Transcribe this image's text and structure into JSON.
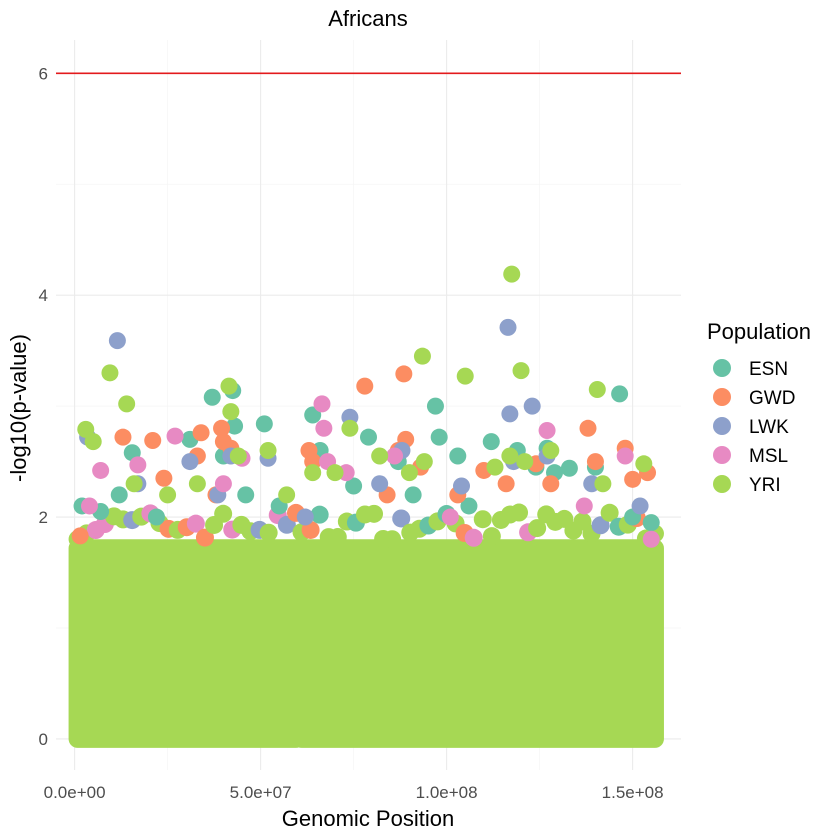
{
  "chart_data": {
    "type": "scatter",
    "title": "Africans",
    "xlabel": "Genomic Position",
    "ylabel": "-log10(p-value)",
    "xlim": [
      -5000000,
      163000000
    ],
    "ylim": [
      -0.28,
      6.3
    ],
    "x_ticks": [
      0,
      50000000,
      100000000,
      150000000
    ],
    "x_tick_labels": [
      "0.0e+00",
      "5.0e+07",
      "1.0e+08",
      "1.5e+08"
    ],
    "y_ticks": [
      0,
      2,
      4,
      6
    ],
    "y_tick_labels": [
      "0",
      "2",
      "4",
      "6"
    ],
    "grid": true,
    "threshold": {
      "y": 6,
      "color": "#e31a1c"
    },
    "legend": {
      "title": "Population",
      "position": "right",
      "entries": [
        {
          "label": "ESN",
          "color": "#66c2a5"
        },
        {
          "label": "GWD",
          "color": "#fc8d62"
        },
        {
          "label": "LWK",
          "color": "#8da0cb"
        },
        {
          "label": "MSL",
          "color": "#e78ac3"
        },
        {
          "label": "YRI",
          "color": "#a6d854"
        }
      ]
    },
    "dense_band": {
      "segments": [
        [
          800000,
          59500000
        ],
        [
          61000000,
          156000000
        ]
      ],
      "y_max_approx": 1.8
    },
    "series": [
      {
        "name": "ESN",
        "color": "#66c2a5",
        "points": [
          [
            2000000,
            2.1
          ],
          [
            7000000,
            2.05
          ],
          [
            12000000,
            2.2
          ],
          [
            15500000,
            2.58
          ],
          [
            22000000,
            2.0
          ],
          [
            31000000,
            2.7
          ],
          [
            37000000,
            3.08
          ],
          [
            40000000,
            2.55
          ],
          [
            42500000,
            3.14
          ],
          [
            43000000,
            2.82
          ],
          [
            46000000,
            2.2
          ],
          [
            51000000,
            2.84
          ],
          [
            55000000,
            2.1
          ],
          [
            64000000,
            2.92
          ],
          [
            66000000,
            2.6
          ],
          [
            75000000,
            2.28
          ],
          [
            79000000,
            2.72
          ],
          [
            87000000,
            2.5
          ],
          [
            91000000,
            2.2
          ],
          [
            97000000,
            3.0
          ],
          [
            98000000,
            2.72
          ],
          [
            103000000,
            2.55
          ],
          [
            106000000,
            2.1
          ],
          [
            112000000,
            2.68
          ],
          [
            119000000,
            2.6
          ],
          [
            124000000,
            2.45
          ],
          [
            127000000,
            2.62
          ],
          [
            129000000,
            2.4
          ],
          [
            133000000,
            2.44
          ],
          [
            140000000,
            2.45
          ],
          [
            146500000,
            3.11
          ],
          [
            150000000,
            2.0
          ],
          [
            155000000,
            1.95
          ]
        ]
      },
      {
        "name": "GWD",
        "color": "#fc8d62",
        "points": [
          [
            1500000,
            1.83
          ],
          [
            13000000,
            2.72
          ],
          [
            21000000,
            2.69
          ],
          [
            24000000,
            2.35
          ],
          [
            33000000,
            2.55
          ],
          [
            34000000,
            2.76
          ],
          [
            38000000,
            2.2
          ],
          [
            39500000,
            2.8
          ],
          [
            40000000,
            2.68
          ],
          [
            42000000,
            2.62
          ],
          [
            63000000,
            2.6
          ],
          [
            64000000,
            2.5
          ],
          [
            78000000,
            3.18
          ],
          [
            84000000,
            2.2
          ],
          [
            87000000,
            2.6
          ],
          [
            88500000,
            3.29
          ],
          [
            89000000,
            2.7
          ],
          [
            93000000,
            2.45
          ],
          [
            103000000,
            2.2
          ],
          [
            110000000,
            2.42
          ],
          [
            116000000,
            2.3
          ],
          [
            124000000,
            2.48
          ],
          [
            128000000,
            2.3
          ],
          [
            138000000,
            2.8
          ],
          [
            140000000,
            2.5
          ],
          [
            148000000,
            2.62
          ],
          [
            150000000,
            2.34
          ],
          [
            154000000,
            2.4
          ]
        ]
      },
      {
        "name": "LWK",
        "color": "#8da0cb",
        "points": [
          [
            3500000,
            2.72
          ],
          [
            11500000,
            3.59
          ],
          [
            17000000,
            2.3
          ],
          [
            31000000,
            2.5
          ],
          [
            38500000,
            2.2
          ],
          [
            42000000,
            2.55
          ],
          [
            52000000,
            2.53
          ],
          [
            62000000,
            2.0
          ],
          [
            74000000,
            2.9
          ],
          [
            82000000,
            2.3
          ],
          [
            88000000,
            2.6
          ],
          [
            104000000,
            2.28
          ],
          [
            116500000,
            3.71
          ],
          [
            117000000,
            2.93
          ],
          [
            118000000,
            2.5
          ],
          [
            123000000,
            3.0
          ],
          [
            127000000,
            2.55
          ],
          [
            139000000,
            2.3
          ],
          [
            152000000,
            2.1
          ]
        ]
      },
      {
        "name": "MSL",
        "color": "#e78ac3",
        "points": [
          [
            4000000,
            2.1
          ],
          [
            7000000,
            2.42
          ],
          [
            17000000,
            2.47
          ],
          [
            27000000,
            2.73
          ],
          [
            40000000,
            2.3
          ],
          [
            45000000,
            2.53
          ],
          [
            66500000,
            3.02
          ],
          [
            67000000,
            2.8
          ],
          [
            68000000,
            2.5
          ],
          [
            73000000,
            2.4
          ],
          [
            86000000,
            2.55
          ],
          [
            101000000,
            2.0
          ],
          [
            127000000,
            2.78
          ],
          [
            137000000,
            2.1
          ],
          [
            148000000,
            2.55
          ],
          [
            155000000,
            1.8
          ]
        ]
      },
      {
        "name": "YRI",
        "color": "#a6d854",
        "points": [
          [
            3000000,
            2.79
          ],
          [
            5000000,
            2.68
          ],
          [
            9500000,
            3.3
          ],
          [
            14000000,
            3.02
          ],
          [
            16000000,
            2.3
          ],
          [
            25000000,
            2.2
          ],
          [
            33000000,
            2.3
          ],
          [
            41500000,
            3.18
          ],
          [
            42000000,
            2.95
          ],
          [
            44000000,
            2.55
          ],
          [
            52000000,
            2.6
          ],
          [
            57000000,
            2.2
          ],
          [
            64000000,
            2.4
          ],
          [
            70000000,
            2.4
          ],
          [
            74000000,
            2.8
          ],
          [
            82000000,
            2.55
          ],
          [
            90000000,
            2.4
          ],
          [
            93500000,
            3.45
          ],
          [
            94000000,
            2.5
          ],
          [
            105000000,
            3.27
          ],
          [
            113000000,
            2.45
          ],
          [
            117000000,
            2.55
          ],
          [
            117500000,
            4.19
          ],
          [
            120000000,
            3.32
          ],
          [
            121000000,
            2.5
          ],
          [
            128000000,
            2.6
          ],
          [
            140500000,
            3.15
          ],
          [
            142000000,
            2.3
          ],
          [
            153000000,
            2.48
          ]
        ]
      }
    ]
  }
}
